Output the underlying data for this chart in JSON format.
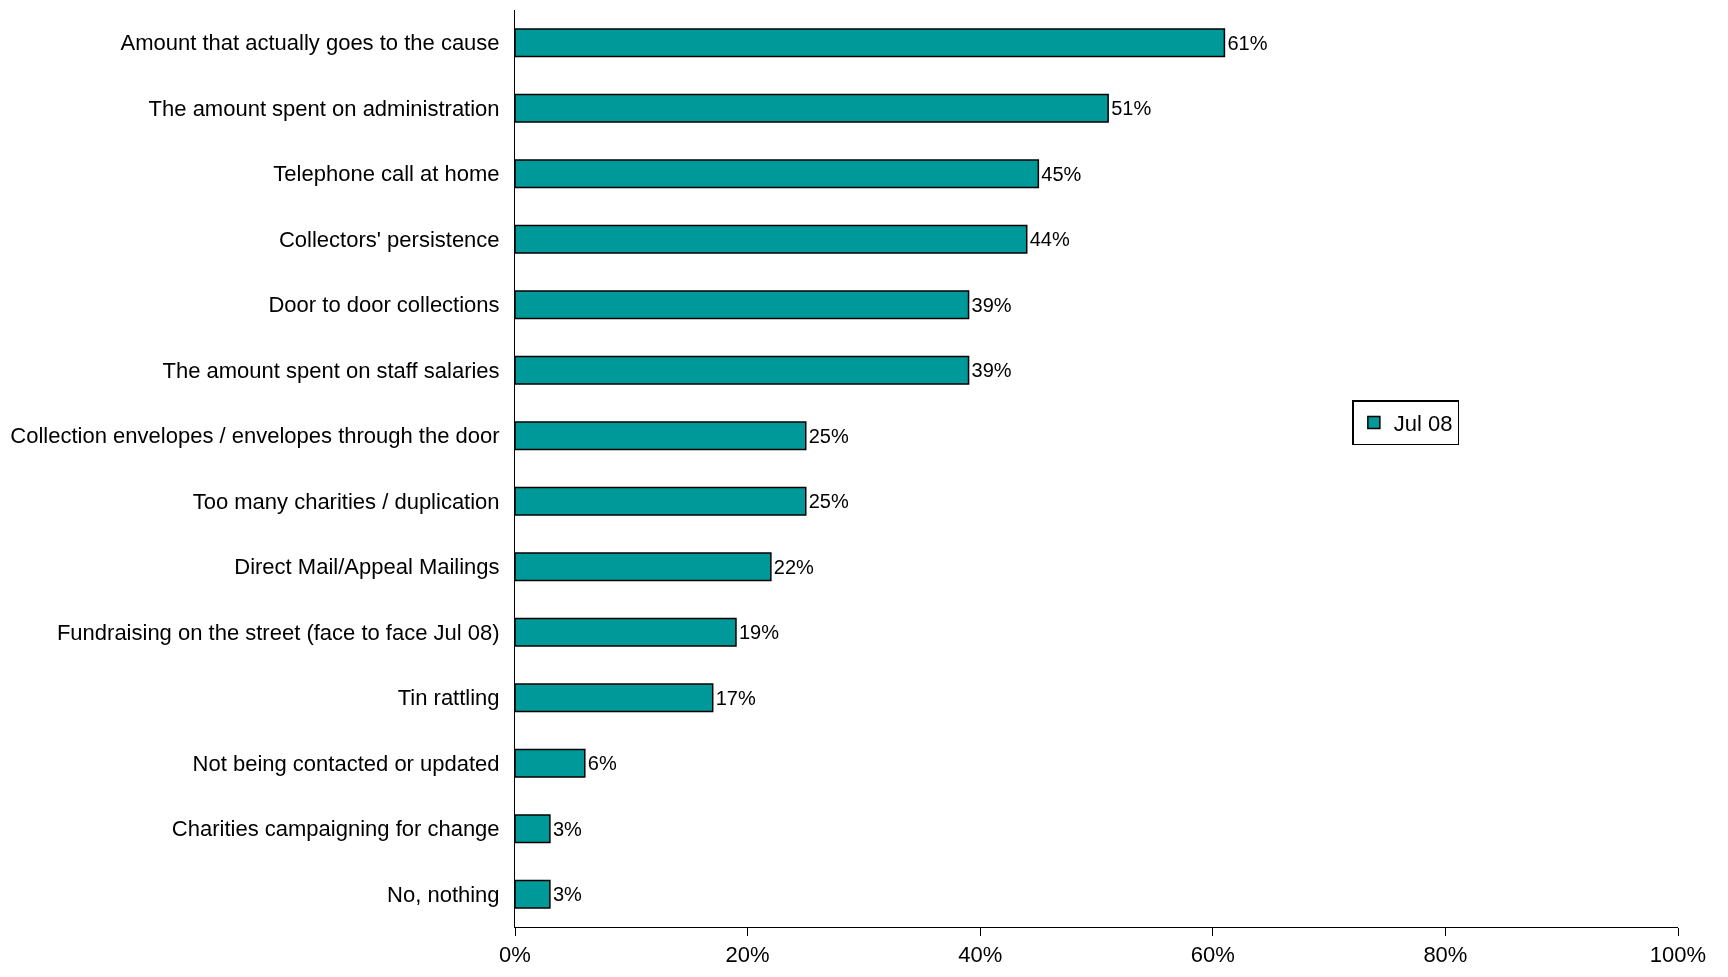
{
  "chart_data": {
    "type": "bar",
    "orientation": "horizontal",
    "categories": [
      "Amount that actually goes to the cause",
      "The amount spent on administration",
      "Telephone call at home",
      "Collectors' persistence",
      "Door to door collections",
      "The amount spent on staff salaries",
      "Collection envelopes / envelopes through the door",
      "Too many charities / duplication",
      "Direct Mail/Appeal Mailings",
      "Fundraising on the street (face to face Jul 08)",
      "Tin rattling",
      "Not being contacted or updated",
      "Charities campaigning for change",
      "No, nothing"
    ],
    "series": [
      {
        "name": "Jul 08",
        "color": "#009999",
        "values": [
          61,
          51,
          45,
          44,
          39,
          39,
          25,
          25,
          22,
          19,
          17,
          6,
          3,
          3
        ],
        "value_labels": [
          "61%",
          "51%",
          "45%",
          "44%",
          "39%",
          "39%",
          "25%",
          "25%",
          "22%",
          "19%",
          "17%",
          "6%",
          "3%",
          "3%"
        ]
      }
    ],
    "xlim": [
      0,
      100
    ],
    "xticks": [
      {
        "value": 0,
        "label": "0%"
      },
      {
        "value": 20,
        "label": "20%"
      },
      {
        "value": 40,
        "label": "40%"
      },
      {
        "value": 60,
        "label": "60%"
      },
      {
        "value": 80,
        "label": "80%"
      },
      {
        "value": 100,
        "label": "100%"
      }
    ],
    "legend": "right"
  }
}
